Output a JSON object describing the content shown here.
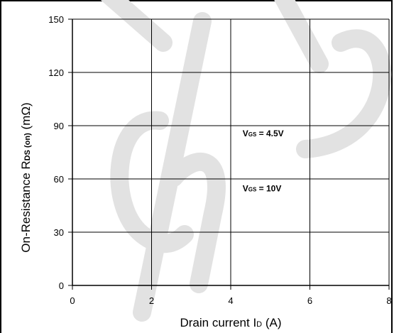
{
  "chart_data": {
    "type": "line",
    "x": [],
    "series": [],
    "xlabel": "Drain current I",
    "xlabel_sub": "D",
    "xlabel_unit": "(A)",
    "ylabel": "On-Resistance R",
    "ylabel_sub": "DS (on)",
    "ylabel_unit": "(mΩ)",
    "xlim": [
      0,
      8
    ],
    "ylim": [
      0,
      150
    ],
    "xticks": [
      "0",
      "2",
      "4",
      "6",
      "8"
    ],
    "yticks": [
      "0",
      "30",
      "60",
      "90",
      "120",
      "150"
    ],
    "grid": true,
    "annotations": [
      {
        "main": "V",
        "sub": "GS",
        "rest": " = 4.5V",
        "x": 4.3,
        "y": 84
      },
      {
        "main": "V",
        "sub": "GS",
        "rest": " = 10V",
        "x": 4.3,
        "y": 53
      }
    ],
    "watermark": "Chip"
  },
  "colors": {
    "grid": "#000000",
    "axis": "#000000",
    "watermark": "#dcdcdc"
  }
}
